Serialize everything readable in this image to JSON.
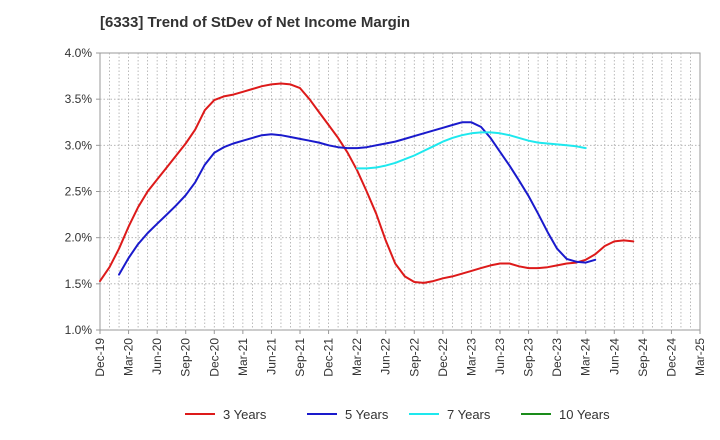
{
  "chart_data": {
    "type": "line",
    "title": "[6333]  Trend of StDev of Net Income Margin",
    "xlabel": "",
    "ylabel": "",
    "x_tick_labels": [
      "Dec-19",
      "Mar-20",
      "Jun-20",
      "Sep-20",
      "Dec-20",
      "Mar-21",
      "Jun-21",
      "Sep-21",
      "Dec-21",
      "Mar-22",
      "Jun-22",
      "Sep-22",
      "Dec-22",
      "Mar-23",
      "Jun-23",
      "Sep-23",
      "Dec-23",
      "Mar-24",
      "Jun-24",
      "Sep-24",
      "Dec-24",
      "Mar-25"
    ],
    "y_tick_labels": [
      "1.0%",
      "1.5%",
      "2.0%",
      "2.5%",
      "3.0%",
      "3.5%",
      "4.0%"
    ],
    "ylim": [
      1.0,
      4.0
    ],
    "grid": true,
    "legend_position": "bottom",
    "series": [
      {
        "name": "3 Years",
        "color": "#dd1a1a",
        "points": [
          {
            "x": "Dec-19",
            "y": 1.53
          },
          {
            "x": "Jan-20",
            "y": 1.68
          },
          {
            "x": "Feb-20",
            "y": 1.88
          },
          {
            "x": "Mar-20",
            "y": 2.12
          },
          {
            "x": "Apr-20",
            "y": 2.33
          },
          {
            "x": "May-20",
            "y": 2.5
          },
          {
            "x": "Jun-20",
            "y": 2.63
          },
          {
            "x": "Jul-20",
            "y": 2.76
          },
          {
            "x": "Aug-20",
            "y": 2.89
          },
          {
            "x": "Sep-20",
            "y": 3.02
          },
          {
            "x": "Oct-20",
            "y": 3.17
          },
          {
            "x": "Nov-20",
            "y": 3.38
          },
          {
            "x": "Dec-20",
            "y": 3.49
          },
          {
            "x": "Jan-21",
            "y": 3.53
          },
          {
            "x": "Feb-21",
            "y": 3.55
          },
          {
            "x": "Mar-21",
            "y": 3.58
          },
          {
            "x": "Apr-21",
            "y": 3.61
          },
          {
            "x": "May-21",
            "y": 3.64
          },
          {
            "x": "Jun-21",
            "y": 3.66
          },
          {
            "x": "Jul-21",
            "y": 3.67
          },
          {
            "x": "Aug-21",
            "y": 3.66
          },
          {
            "x": "Sep-21",
            "y": 3.62
          },
          {
            "x": "Oct-21",
            "y": 3.5
          },
          {
            "x": "Nov-21",
            "y": 3.36
          },
          {
            "x": "Dec-21",
            "y": 3.22
          },
          {
            "x": "Jan-22",
            "y": 3.08
          },
          {
            "x": "Feb-22",
            "y": 2.92
          },
          {
            "x": "Mar-22",
            "y": 2.73
          },
          {
            "x": "Apr-22",
            "y": 2.5
          },
          {
            "x": "May-22",
            "y": 2.26
          },
          {
            "x": "Jun-22",
            "y": 1.97
          },
          {
            "x": "Jul-22",
            "y": 1.72
          },
          {
            "x": "Aug-22",
            "y": 1.58
          },
          {
            "x": "Sep-22",
            "y": 1.52
          },
          {
            "x": "Oct-22",
            "y": 1.51
          },
          {
            "x": "Nov-22",
            "y": 1.53
          },
          {
            "x": "Dec-22",
            "y": 1.56
          },
          {
            "x": "Jan-23",
            "y": 1.58
          },
          {
            "x": "Feb-23",
            "y": 1.61
          },
          {
            "x": "Mar-23",
            "y": 1.64
          },
          {
            "x": "Apr-23",
            "y": 1.67
          },
          {
            "x": "May-23",
            "y": 1.7
          },
          {
            "x": "Jun-23",
            "y": 1.72
          },
          {
            "x": "Jul-23",
            "y": 1.72
          },
          {
            "x": "Aug-23",
            "y": 1.69
          },
          {
            "x": "Sep-23",
            "y": 1.67
          },
          {
            "x": "Oct-23",
            "y": 1.67
          },
          {
            "x": "Nov-23",
            "y": 1.68
          },
          {
            "x": "Dec-23",
            "y": 1.7
          },
          {
            "x": "Jan-24",
            "y": 1.72
          },
          {
            "x": "Feb-24",
            "y": 1.73
          },
          {
            "x": "Mar-24",
            "y": 1.76
          },
          {
            "x": "Apr-24",
            "y": 1.82
          },
          {
            "x": "May-24",
            "y": 1.91
          },
          {
            "x": "Jun-24",
            "y": 1.96
          },
          {
            "x": "Jul-24",
            "y": 1.97
          },
          {
            "x": "Aug-24",
            "y": 1.96
          }
        ]
      },
      {
        "name": "5 Years",
        "color": "#1a1acc",
        "points": [
          {
            "x": "Feb-20",
            "y": 1.6
          },
          {
            "x": "Mar-20",
            "y": 1.78
          },
          {
            "x": "Apr-20",
            "y": 1.93
          },
          {
            "x": "May-20",
            "y": 2.05
          },
          {
            "x": "Jun-20",
            "y": 2.15
          },
          {
            "x": "Jul-20",
            "y": 2.25
          },
          {
            "x": "Aug-20",
            "y": 2.35
          },
          {
            "x": "Sep-20",
            "y": 2.46
          },
          {
            "x": "Oct-20",
            "y": 2.6
          },
          {
            "x": "Nov-20",
            "y": 2.79
          },
          {
            "x": "Dec-20",
            "y": 2.92
          },
          {
            "x": "Jan-21",
            "y": 2.98
          },
          {
            "x": "Feb-21",
            "y": 3.02
          },
          {
            "x": "Mar-21",
            "y": 3.05
          },
          {
            "x": "Apr-21",
            "y": 3.08
          },
          {
            "x": "May-21",
            "y": 3.11
          },
          {
            "x": "Jun-21",
            "y": 3.12
          },
          {
            "x": "Jul-21",
            "y": 3.11
          },
          {
            "x": "Aug-21",
            "y": 3.09
          },
          {
            "x": "Sep-21",
            "y": 3.07
          },
          {
            "x": "Oct-21",
            "y": 3.05
          },
          {
            "x": "Nov-21",
            "y": 3.03
          },
          {
            "x": "Dec-21",
            "y": 3.0
          },
          {
            "x": "Jan-22",
            "y": 2.98
          },
          {
            "x": "Feb-22",
            "y": 2.97
          },
          {
            "x": "Mar-22",
            "y": 2.97
          },
          {
            "x": "Apr-22",
            "y": 2.98
          },
          {
            "x": "May-22",
            "y": 3.0
          },
          {
            "x": "Jun-22",
            "y": 3.02
          },
          {
            "x": "Jul-22",
            "y": 3.04
          },
          {
            "x": "Aug-22",
            "y": 3.07
          },
          {
            "x": "Sep-22",
            "y": 3.1
          },
          {
            "x": "Oct-22",
            "y": 3.13
          },
          {
            "x": "Nov-22",
            "y": 3.16
          },
          {
            "x": "Dec-22",
            "y": 3.19
          },
          {
            "x": "Jan-23",
            "y": 3.22
          },
          {
            "x": "Feb-23",
            "y": 3.25
          },
          {
            "x": "Mar-23",
            "y": 3.25
          },
          {
            "x": "Apr-23",
            "y": 3.2
          },
          {
            "x": "May-23",
            "y": 3.08
          },
          {
            "x": "Jun-23",
            "y": 2.93
          },
          {
            "x": "Jul-23",
            "y": 2.78
          },
          {
            "x": "Aug-23",
            "y": 2.62
          },
          {
            "x": "Sep-23",
            "y": 2.45
          },
          {
            "x": "Oct-23",
            "y": 2.26
          },
          {
            "x": "Nov-23",
            "y": 2.06
          },
          {
            "x": "Dec-23",
            "y": 1.88
          },
          {
            "x": "Jan-24",
            "y": 1.77
          },
          {
            "x": "Feb-24",
            "y": 1.74
          },
          {
            "x": "Mar-24",
            "y": 1.73
          },
          {
            "x": "Apr-24",
            "y": 1.76
          }
        ]
      },
      {
        "name": "7 Years",
        "color": "#1ee8ee",
        "points": [
          {
            "x": "Mar-22",
            "y": 2.75
          },
          {
            "x": "Apr-22",
            "y": 2.75
          },
          {
            "x": "May-22",
            "y": 2.76
          },
          {
            "x": "Jun-22",
            "y": 2.78
          },
          {
            "x": "Jul-22",
            "y": 2.81
          },
          {
            "x": "Aug-22",
            "y": 2.85
          },
          {
            "x": "Sep-22",
            "y": 2.89
          },
          {
            "x": "Oct-22",
            "y": 2.94
          },
          {
            "x": "Nov-22",
            "y": 2.99
          },
          {
            "x": "Dec-22",
            "y": 3.04
          },
          {
            "x": "Jan-23",
            "y": 3.08
          },
          {
            "x": "Feb-23",
            "y": 3.11
          },
          {
            "x": "Mar-23",
            "y": 3.13
          },
          {
            "x": "Apr-23",
            "y": 3.14
          },
          {
            "x": "May-23",
            "y": 3.14
          },
          {
            "x": "Jun-23",
            "y": 3.13
          },
          {
            "x": "Jul-23",
            "y": 3.11
          },
          {
            "x": "Aug-23",
            "y": 3.08
          },
          {
            "x": "Sep-23",
            "y": 3.05
          },
          {
            "x": "Oct-23",
            "y": 3.03
          },
          {
            "x": "Nov-23",
            "y": 3.02
          },
          {
            "x": "Dec-23",
            "y": 3.01
          },
          {
            "x": "Jan-24",
            "y": 3.0
          },
          {
            "x": "Feb-24",
            "y": 2.99
          },
          {
            "x": "Mar-24",
            "y": 2.97
          }
        ]
      },
      {
        "name": "10 Years",
        "color": "#1a8c1a",
        "points": []
      }
    ]
  }
}
